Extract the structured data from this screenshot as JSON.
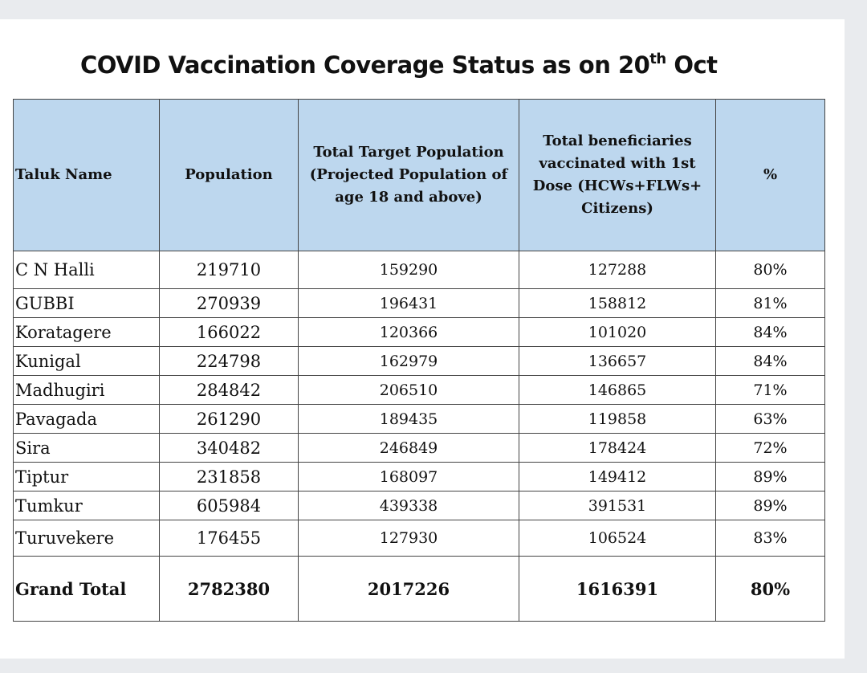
{
  "title": {
    "prefix": "COVID Vaccination Coverage Status as on 20",
    "superscript": "th",
    "suffix": " Oct"
  },
  "table": {
    "headers": {
      "taluk": "Taluk Name",
      "population": "Population",
      "target": "Total Target Population (Projected Population of age 18 and above)",
      "vaccinated": "Total beneficiaries vaccinated with 1st Dose (HCWs+FLWs+ Citizens)",
      "percent": "%"
    },
    "rows": [
      {
        "taluk": "C N Halli",
        "population": "219710",
        "target": "159290",
        "vaccinated": "127288",
        "percent": "80%"
      },
      {
        "taluk": "GUBBI",
        "population": "270939",
        "target": "196431",
        "vaccinated": "158812",
        "percent": "81%"
      },
      {
        "taluk": "Koratagere",
        "population": "166022",
        "target": "120366",
        "vaccinated": "101020",
        "percent": "84%"
      },
      {
        "taluk": "Kunigal",
        "population": "224798",
        "target": "162979",
        "vaccinated": "136657",
        "percent": "84%"
      },
      {
        "taluk": "Madhugiri",
        "population": "284842",
        "target": "206510",
        "vaccinated": "146865",
        "percent": "71%"
      },
      {
        "taluk": "Pavagada",
        "population": "261290",
        "target": "189435",
        "vaccinated": "119858",
        "percent": "63%"
      },
      {
        "taluk": "Sira",
        "population": "340482",
        "target": "246849",
        "vaccinated": "178424",
        "percent": "72%"
      },
      {
        "taluk": "Tiptur",
        "population": "231858",
        "target": "168097",
        "vaccinated": "149412",
        "percent": "89%"
      },
      {
        "taluk": "Tumkur",
        "population": "605984",
        "target": "439338",
        "vaccinated": "391531",
        "percent": "89%"
      },
      {
        "taluk": "Turuvekere",
        "population": "176455",
        "target": "127930",
        "vaccinated": "106524",
        "percent": "83%"
      }
    ],
    "total": {
      "taluk": "Grand Total",
      "population": "2782380",
      "target": "2017226",
      "vaccinated": "1616391",
      "percent": "80%"
    }
  }
}
